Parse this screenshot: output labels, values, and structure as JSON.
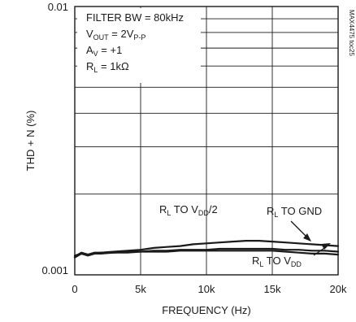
{
  "chart_data": {
    "type": "line",
    "title": "",
    "xlabel": "FREQUENCY (Hz)",
    "ylabel": "THD + N (%)",
    "xlim": [
      0,
      20000
    ],
    "ylim": [
      0.001,
      0.01
    ],
    "y_scale": "log",
    "grid": true,
    "x_tick_labels": [
      "0",
      "5k",
      "10k",
      "15k",
      "20k"
    ],
    "y_tick_labels": [
      "0.01",
      "0.001"
    ],
    "conditions": {
      "line1": "FILTER BW = 80kHz",
      "line2_pre": "V",
      "line2_sub": "OUT",
      "line2_post": " = 2V",
      "line2_sub2": "P-P",
      "line3_pre": "A",
      "line3_sub": "V",
      "line3_post": " = +1",
      "line4_pre": "R",
      "line4_sub": "L",
      "line4_post": " = 1kΩ"
    },
    "figure_id": "MAX4475 toc25",
    "series": [
      {
        "name": "RL TO VDD/2",
        "label_parts": {
          "r": "R",
          "r_sub": "L",
          "mid": " TO V",
          "v_sub": "DD",
          "tail": "/2"
        },
        "x": [
          0,
          500,
          1000,
          1500,
          2000,
          3000,
          4000,
          5000,
          6000,
          7000,
          8000,
          9000,
          10000,
          11000,
          12000,
          13000,
          14000,
          15000,
          16000,
          17000,
          18000,
          19000,
          20000
        ],
        "y": [
          0.00118,
          0.0012,
          0.00119,
          0.00121,
          0.00121,
          0.00122,
          0.00123,
          0.00124,
          0.00126,
          0.00127,
          0.00128,
          0.0013,
          0.00131,
          0.00132,
          0.00133,
          0.00134,
          0.00134,
          0.00133,
          0.00132,
          0.00131,
          0.0013,
          0.00129,
          0.00128
        ]
      },
      {
        "name": "RL TO GND",
        "label_parts": {
          "r": "R",
          "r_sub": "L",
          "mid": " TO GND",
          "v_sub": "",
          "tail": ""
        },
        "x": [
          0,
          500,
          1000,
          1500,
          2000,
          3000,
          4000,
          5000,
          6000,
          7000,
          8000,
          9000,
          10000,
          11000,
          12000,
          13000,
          14000,
          15000,
          16000,
          17000,
          18000,
          19000,
          20000
        ],
        "y": [
          0.00117,
          0.00121,
          0.00119,
          0.0012,
          0.00121,
          0.00121,
          0.00122,
          0.00122,
          0.00123,
          0.00123,
          0.00124,
          0.00124,
          0.00124,
          0.00125,
          0.00125,
          0.00125,
          0.00125,
          0.00125,
          0.00124,
          0.00124,
          0.00123,
          0.00123,
          0.00122
        ]
      },
      {
        "name": "RL TO VDD",
        "label_parts": {
          "r": "R",
          "r_sub": "L",
          "mid": " TO V",
          "v_sub": "DD",
          "tail": ""
        },
        "x": [
          0,
          500,
          1000,
          1500,
          2000,
          3000,
          4000,
          5000,
          6000,
          7000,
          8000,
          9000,
          10000,
          11000,
          12000,
          13000,
          14000,
          15000,
          16000,
          17000,
          18000,
          19000,
          20000
        ],
        "y": [
          0.00116,
          0.0012,
          0.00118,
          0.0012,
          0.0012,
          0.00121,
          0.00121,
          0.00122,
          0.00122,
          0.00122,
          0.00123,
          0.00123,
          0.00123,
          0.00123,
          0.00123,
          0.00123,
          0.00123,
          0.00123,
          0.00122,
          0.00121,
          0.0012,
          0.0012,
          0.00119
        ]
      }
    ],
    "colors": {
      "line": "#1a1a1a",
      "grid": "#1a1a1a",
      "background": "#ffffff"
    }
  }
}
